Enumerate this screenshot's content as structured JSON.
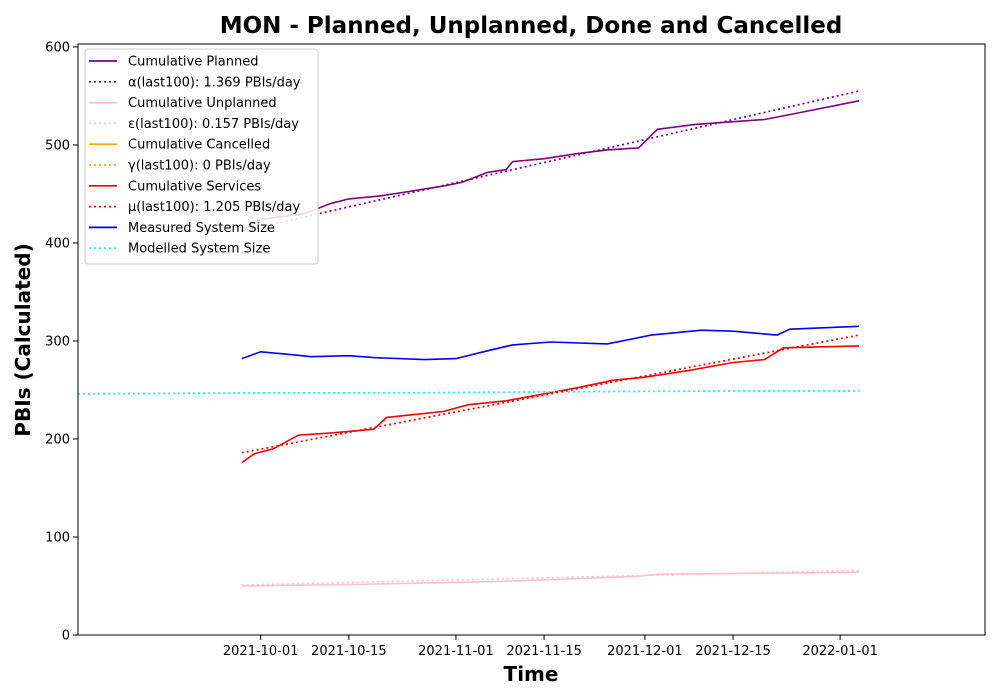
{
  "chart_data": {
    "type": "line",
    "title": "MON - Planned, Unplanned, Done  and Cancelled",
    "xlabel": "Time",
    "ylabel": "PBIs (Calculated)",
    "xlim": [
      "2021-09-02",
      "2022-01-24"
    ],
    "ylim": [
      0,
      603
    ],
    "x_ticks": [
      "2021-10-01",
      "2021-10-15",
      "2021-11-01",
      "2021-11-15",
      "2021-12-01",
      "2021-12-15",
      "2022-01-01"
    ],
    "y_ticks": [
      0,
      100,
      200,
      300,
      400,
      500,
      600
    ],
    "grid": false,
    "legend_position": "top-left",
    "series": [
      {
        "name": "Cumulative Planned",
        "color": "#800080",
        "style": "solid",
        "x": [
          "2021-09-28",
          "2021-10-01",
          "2021-10-08",
          "2021-10-12",
          "2021-10-15",
          "2021-10-20",
          "2021-10-24",
          "2021-10-30",
          "2021-11-02",
          "2021-11-06",
          "2021-11-09",
          "2021-11-10",
          "2021-11-15",
          "2021-11-20",
          "2021-11-25",
          "2021-11-30",
          "2021-12-03",
          "2021-12-09",
          "2021-12-20",
          "2021-12-24",
          "2022-01-04"
        ],
        "y": [
          412,
          424,
          430,
          440,
          445,
          448,
          452,
          458,
          462,
          472,
          475,
          483,
          486,
          491,
          495,
          497,
          516,
          521,
          526,
          531,
          545
        ]
      },
      {
        "name": "α(last100): 1.369 PBIs/day",
        "color": "#800080",
        "style": "dotted",
        "x": [
          "2021-09-28",
          "2022-01-04"
        ],
        "y": [
          412,
          555
        ]
      },
      {
        "name": "Cumulative Unplanned",
        "color": "#ffc0cb",
        "style": "solid",
        "x": [
          "2021-09-28",
          "2021-10-20",
          "2021-11-10",
          "2021-11-30",
          "2021-12-03",
          "2022-01-04"
        ],
        "y": [
          50,
          52,
          55,
          60,
          62,
          64
        ]
      },
      {
        "name": "ε(last100): 0.157 PBIs/day",
        "color": "#ffc0cb",
        "style": "dotted",
        "x": [
          "2021-09-28",
          "2022-01-04"
        ],
        "y": [
          51,
          66
        ]
      },
      {
        "name": "Cumulative Cancelled",
        "color": "#ffa500",
        "style": "solid",
        "x": [],
        "y": []
      },
      {
        "name": "γ(last100): 0 PBIs/day",
        "color": "#ffa500",
        "style": "dotted",
        "x": [],
        "y": []
      },
      {
        "name": "Cumulative Services",
        "color": "#ff0000",
        "style": "solid",
        "x": [
          "2021-09-28",
          "2021-09-30",
          "2021-10-03",
          "2021-10-07",
          "2021-10-12",
          "2021-10-19",
          "2021-10-21",
          "2021-10-30",
          "2021-11-03",
          "2021-11-09",
          "2021-11-15",
          "2021-11-20",
          "2021-11-26",
          "2021-12-01",
          "2021-12-08",
          "2021-12-15",
          "2021-12-20",
          "2021-12-23",
          "2022-01-04"
        ],
        "y": [
          176,
          185,
          190,
          204,
          206,
          210,
          222,
          228,
          235,
          239,
          246,
          252,
          260,
          263,
          270,
          278,
          281,
          293,
          295
        ]
      },
      {
        "name": "μ(last100): 1.205 PBIs/day",
        "color": "#ff0000",
        "style": "dotted",
        "x": [
          "2021-09-28",
          "2022-01-04"
        ],
        "y": [
          186,
          306
        ]
      },
      {
        "name": "Measured System Size",
        "color": "#0000ff",
        "style": "solid",
        "x": [
          "2021-09-28",
          "2021-10-01",
          "2021-10-06",
          "2021-10-09",
          "2021-10-15",
          "2021-10-19",
          "2021-10-27",
          "2021-11-01",
          "2021-11-06",
          "2021-11-10",
          "2021-11-16",
          "2021-11-25",
          "2021-12-02",
          "2021-12-10",
          "2021-12-15",
          "2021-12-22",
          "2021-12-24",
          "2022-01-04"
        ],
        "y": [
          282,
          289,
          286,
          284,
          285,
          283,
          281,
          282,
          290,
          296,
          299,
          297,
          306,
          311,
          310,
          306,
          312,
          315
        ]
      },
      {
        "name": "Modelled System Size",
        "color": "#00ffff",
        "style": "dotted",
        "x": [
          "2021-09-02",
          "2021-09-30",
          "2021-10-20",
          "2021-11-15",
          "2021-12-15",
          "2022-01-04"
        ],
        "y": [
          246,
          247,
          247,
          248,
          249,
          249
        ]
      }
    ]
  }
}
